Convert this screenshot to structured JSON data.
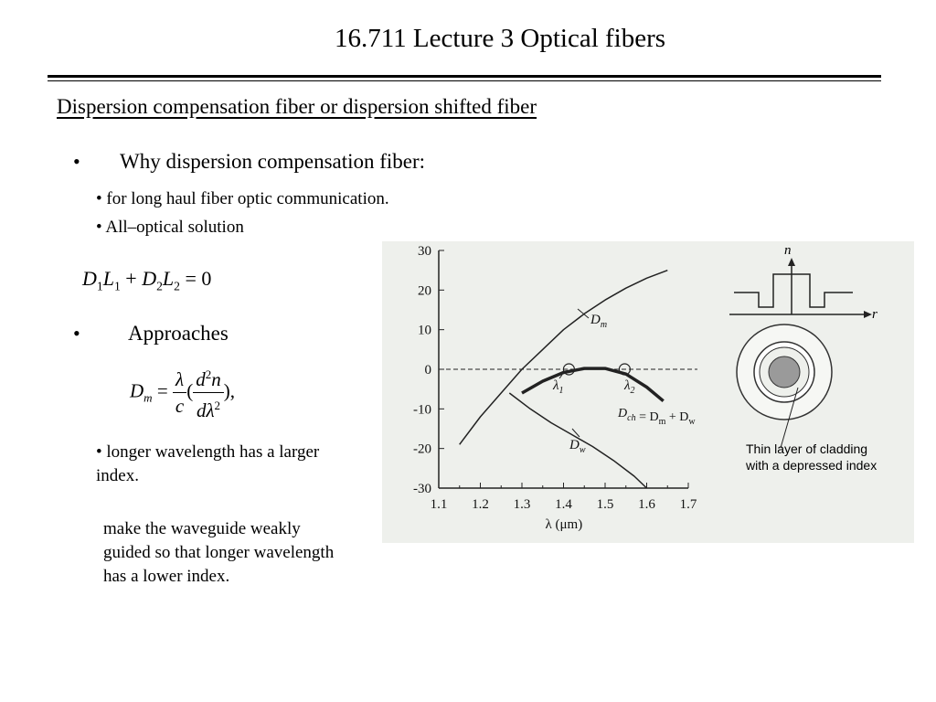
{
  "header": {
    "title": "16.711 Lecture 3 Optical fibers"
  },
  "section": {
    "subtitle": "Dispersion compensation fiber or dispersion shifted fiber"
  },
  "bullets": {
    "dot": "•",
    "why": "Why dispersion compensation fiber:",
    "sub_items": [
      "• for long haul fiber optic communication.",
      "• All–optical solution"
    ],
    "approaches": "Approaches",
    "longer": "• longer wavelength has a larger index."
  },
  "equation1": {
    "D1": "D",
    "sub1": "1",
    "L1": "L",
    "sub1b": "1",
    "plus": " + ",
    "D2": "D",
    "sub2": "2",
    "L2": "L",
    "sub2b": "2",
    "eq": " = 0"
  },
  "equation2": {
    "D": "D",
    "sub": "m",
    "eq": " = ",
    "lambda": "λ",
    "c": "c",
    "open": "(",
    "close": "),",
    "d": "d",
    "sup2": "2",
    "n": "n",
    "dl": "dλ",
    "sup2b": "2"
  },
  "note": "make the waveguide weakly guided so that longer wavelength has a lower index.",
  "chart_data": {
    "type": "line",
    "xlabel": "λ (μm)",
    "ylim": [
      -30,
      30
    ],
    "xlim": [
      1.1,
      1.7
    ],
    "y_ticks": [
      "30",
      "20",
      "10",
      "0",
      "-10",
      "-20",
      "-30"
    ],
    "x_ticks": [
      "1.1",
      "1.2",
      "1.3",
      "1.4",
      "1.5",
      "1.6",
      "1.7"
    ],
    "series": [
      {
        "name": "D_m",
        "x": [
          1.15,
          1.2,
          1.25,
          1.3,
          1.35,
          1.4,
          1.45,
          1.5,
          1.55,
          1.6,
          1.65
        ],
        "y": [
          -19,
          -12,
          -6,
          0,
          5,
          10,
          14,
          17.5,
          20.5,
          23,
          25
        ]
      },
      {
        "name": "D_w",
        "x": [
          1.27,
          1.32,
          1.37,
          1.42,
          1.47,
          1.52,
          1.57,
          1.6
        ],
        "y": [
          -6,
          -10,
          -13.5,
          -16.5,
          -19.5,
          -23,
          -27,
          -30
        ]
      },
      {
        "name": "D_ch",
        "x": [
          1.3,
          1.35,
          1.4,
          1.45,
          1.5,
          1.55,
          1.6,
          1.64
        ],
        "y": [
          -6,
          -3,
          -0.8,
          0.2,
          0.2,
          -1.2,
          -4.5,
          -8
        ]
      }
    ],
    "labels": {
      "dm": "D",
      "dm_sub": "m",
      "dw": "D",
      "dw_sub": "w",
      "l1": "λ",
      "l1_sub": "1",
      "l2": "λ",
      "l2_sub": "2",
      "dch": "D",
      "dch_sub": "ch",
      "dch_rest": " = D",
      "dch_sub2": "m",
      "dch_rest2": " + D",
      "dch_sub3": "w"
    },
    "inset": {
      "n_label": "n",
      "r_label": "r",
      "caption_line1": "Thin layer of cladding",
      "caption_line2": "with a depressed index"
    }
  }
}
